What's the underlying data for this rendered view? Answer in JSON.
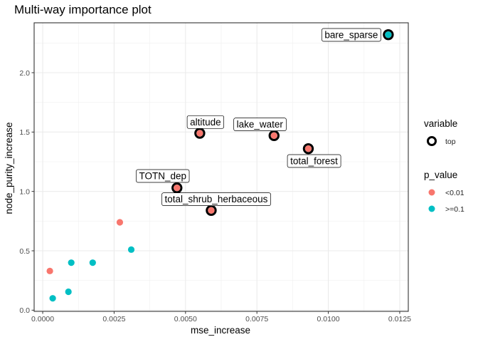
{
  "chart_data": {
    "type": "scatter",
    "title": "Multi-way importance plot",
    "xlabel": "mse_increase",
    "ylabel": "node_purity_increase",
    "xlim": [
      -0.0003,
      0.0128
    ],
    "ylim": [
      -0.01,
      2.42
    ],
    "xticks": [
      0.0,
      0.0025,
      0.005,
      0.0075,
      0.01,
      0.0125
    ],
    "xtick_labels": [
      "0.0000",
      "0.0025",
      "0.0050",
      "0.0075",
      "0.0100",
      "0.0125"
    ],
    "yticks": [
      0.0,
      0.5,
      1.0,
      1.5,
      2.0
    ],
    "ytick_labels": [
      "0.0",
      "0.5",
      "1.0",
      "1.5",
      "2.0"
    ],
    "grid": true,
    "colors": {
      "lt001": "#F8766D",
      "ge01": "#00BFC4"
    },
    "legend": {
      "variable_title": "variable",
      "variable_entries": [
        "top"
      ],
      "pvalue_title": "p_value",
      "pvalue_entries": [
        "<0.01",
        ">=0.1"
      ]
    },
    "points": [
      {
        "label": "bare_sparse",
        "x": 0.0121,
        "y": 2.32,
        "p_value": ">=0.1",
        "top": true
      },
      {
        "label": "altitude",
        "x": 0.0055,
        "y": 1.49,
        "p_value": "<0.01",
        "top": true
      },
      {
        "label": "lake_water",
        "x": 0.0081,
        "y": 1.47,
        "p_value": "<0.01",
        "top": true
      },
      {
        "label": "total_forest",
        "x": 0.0093,
        "y": 1.36,
        "p_value": "<0.01",
        "top": true
      },
      {
        "label": "TOTN_dep",
        "x": 0.0047,
        "y": 1.03,
        "p_value": "<0.01",
        "top": true
      },
      {
        "label": "total_shrub_herbaceous",
        "x": 0.0059,
        "y": 0.84,
        "p_value": "<0.01",
        "top": true
      },
      {
        "label": "",
        "x": 0.0027,
        "y": 0.74,
        "p_value": "<0.01",
        "top": false
      },
      {
        "label": "",
        "x": 0.0031,
        "y": 0.51,
        "p_value": ">=0.1",
        "top": false
      },
      {
        "label": "",
        "x": 0.00025,
        "y": 0.33,
        "p_value": "<0.01",
        "top": false
      },
      {
        "label": "",
        "x": 0.001,
        "y": 0.4,
        "p_value": ">=0.1",
        "top": false
      },
      {
        "label": "",
        "x": 0.00175,
        "y": 0.4,
        "p_value": ">=0.1",
        "top": false
      },
      {
        "label": "",
        "x": 0.00035,
        "y": 0.1,
        "p_value": ">=0.1",
        "top": false
      },
      {
        "label": "",
        "x": 0.0009,
        "y": 0.155,
        "p_value": ">=0.1",
        "top": false
      }
    ]
  }
}
